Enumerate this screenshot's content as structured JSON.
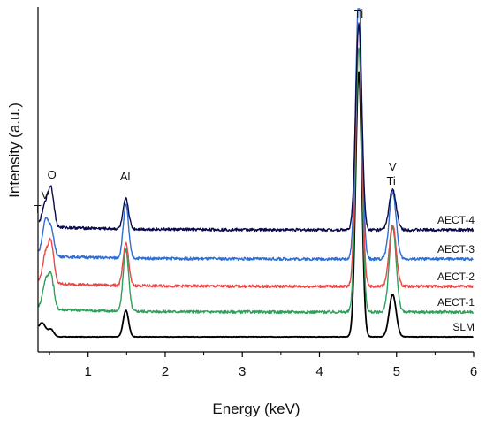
{
  "chart_data": {
    "type": "line",
    "xlabel": "Energy (keV)",
    "ylabel": "Intensity (a.u.)",
    "xlim": [
      0.35,
      6
    ],
    "xticks": [
      "1",
      "2",
      "3",
      "4",
      "5",
      "6"
    ],
    "grid": false,
    "legend": "labels at right end of each trace",
    "peak_labels": [
      {
        "text": "Ti",
        "energy": 0.36
      },
      {
        "text": "V",
        "energy": 0.44
      },
      {
        "text": "O",
        "energy": 0.53
      },
      {
        "text": "Al",
        "energy": 1.48
      },
      {
        "text": "Ti",
        "energy": 4.51
      },
      {
        "text": "V",
        "energy": 4.95
      },
      {
        "text": "Ti",
        "energy": 4.93
      }
    ],
    "peaks_keV": [
      0.4,
      0.45,
      0.52,
      1.49,
      4.51,
      4.95
    ],
    "series": [
      {
        "name": "SLM",
        "color": "#000000",
        "baseline": 0,
        "peak_heights": [
          16,
          0,
          8,
          30,
          300,
          48
        ]
      },
      {
        "name": "AECT-1",
        "color": "#2ea05a",
        "baseline": 28,
        "peak_heights": [
          8,
          28,
          40,
          70,
          300,
          96
        ]
      },
      {
        "name": "AECT-2",
        "color": "#e84848",
        "baseline": 57,
        "peak_heights": [
          8,
          30,
          48,
          48,
          300,
          70
        ]
      },
      {
        "name": "AECT-3",
        "color": "#2d6fd6",
        "baseline": 88,
        "peak_heights": [
          10,
          36,
          32,
          60,
          300,
          76
        ]
      },
      {
        "name": "AECT-4",
        "color": "#0a0a4a",
        "baseline": 121,
        "peak_heights": [
          10,
          22,
          46,
          34,
          232,
          46
        ]
      }
    ]
  }
}
